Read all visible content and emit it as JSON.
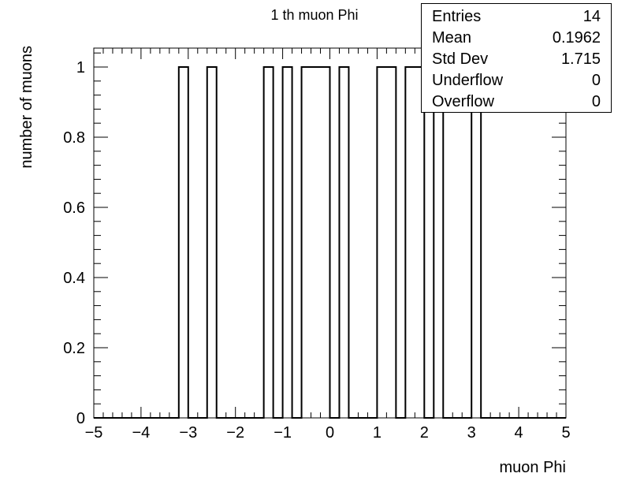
{
  "chart_data": {
    "type": "bar",
    "title": "1 th muon Phi",
    "xlabel": "muon Phi",
    "ylabel": "number of muons",
    "xlim": [
      -5,
      5
    ],
    "ylim": [
      0,
      1.05
    ],
    "bin_width": 0.2,
    "x_ticks": [
      "−5",
      "−4",
      "−3",
      "−2",
      "−1",
      "0",
      "1",
      "2",
      "3",
      "4",
      "5"
    ],
    "y_ticks": [
      "0",
      "0.2",
      "0.4",
      "0.6",
      "0.8",
      "1"
    ],
    "bins": [
      {
        "x_low": -3.2,
        "x_high": -3.0,
        "value": 1
      },
      {
        "x_low": -2.6,
        "x_high": -2.4,
        "value": 1
      },
      {
        "x_low": -1.4,
        "x_high": -1.2,
        "value": 1
      },
      {
        "x_low": -1.0,
        "x_high": -0.8,
        "value": 1
      },
      {
        "x_low": -0.6,
        "x_high": -0.4,
        "value": 1
      },
      {
        "x_low": -0.4,
        "x_high": -0.2,
        "value": 1
      },
      {
        "x_low": -0.2,
        "x_high": 0.0,
        "value": 1
      },
      {
        "x_low": 0.2,
        "x_high": 0.4,
        "value": 1
      },
      {
        "x_low": 1.0,
        "x_high": 1.2,
        "value": 1
      },
      {
        "x_low": 1.2,
        "x_high": 1.4,
        "value": 1
      },
      {
        "x_low": 1.6,
        "x_high": 1.8,
        "value": 1
      },
      {
        "x_low": 1.8,
        "x_high": 2.0,
        "value": 1
      },
      {
        "x_low": 2.2,
        "x_high": 2.4,
        "value": 1
      },
      {
        "x_low": 3.0,
        "x_high": 3.2,
        "value": 1
      }
    ],
    "legend_position": "top-right",
    "grid": false
  },
  "stats": [
    {
      "label": "Entries",
      "value": "14"
    },
    {
      "label": "Mean",
      "value": "0.1962"
    },
    {
      "label": "Std Dev",
      "value": "1.715"
    },
    {
      "label": "Underflow",
      "value": "0"
    },
    {
      "label": "Overflow",
      "value": "0"
    }
  ],
  "colors": {
    "line": "#000000",
    "background": "#ffffff"
  }
}
